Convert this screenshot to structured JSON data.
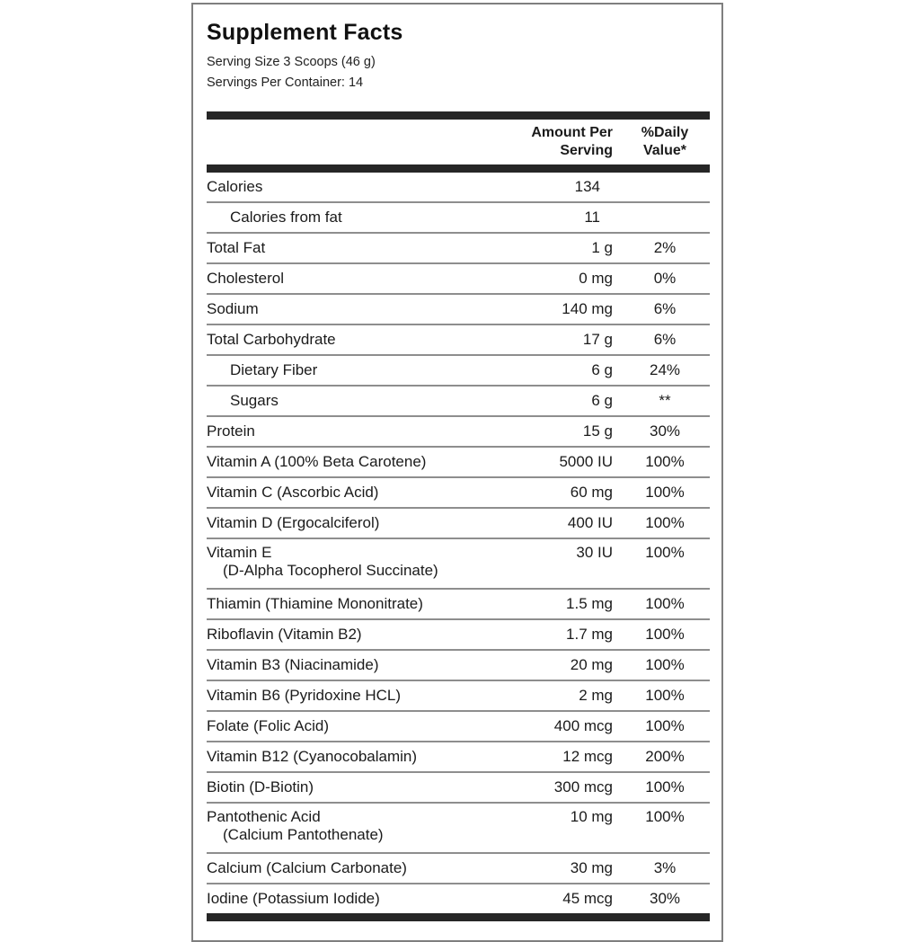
{
  "label": {
    "title": "Supplement Facts",
    "serving_size": "Serving Size 3 Scoops (46 g)",
    "servings_per_container": "Servings Per Container: 14",
    "header": {
      "amount_line1": "Amount Per",
      "amount_line2": "Serving",
      "dv_line1": "%Daily",
      "dv_line2": "Value*"
    },
    "rows": [
      {
        "name": "Calories",
        "amount": "134",
        "dv": "",
        "indent": 0
      },
      {
        "name": "Calories from fat",
        "amount": "11",
        "dv": "",
        "indent": 1
      },
      {
        "name": "Total Fat",
        "amount": "1 g",
        "dv": "2%",
        "indent": 0
      },
      {
        "name": "Cholesterol",
        "amount": "0 mg",
        "dv": "0%",
        "indent": 0
      },
      {
        "name": "Sodium",
        "amount": "140 mg",
        "dv": "6%",
        "indent": 0
      },
      {
        "name": "Total Carbohydrate",
        "amount": "17 g",
        "dv": "6%",
        "indent": 0
      },
      {
        "name": "Dietary Fiber",
        "amount": "6 g",
        "dv": "24%",
        "indent": 1
      },
      {
        "name": "Sugars",
        "amount": "6 g",
        "dv": "**",
        "indent": 1
      },
      {
        "name": "Protein",
        "amount": "15 g",
        "dv": "30%",
        "indent": 0
      },
      {
        "name": "Vitamin A (100% Beta Carotene)",
        "amount": "5000 IU",
        "dv": "100%",
        "indent": 0
      },
      {
        "name": "Vitamin C (Ascorbic Acid)",
        "amount": "60 mg",
        "dv": "100%",
        "indent": 0
      },
      {
        "name": "Vitamin D (Ergocalciferol)",
        "amount": "400 IU",
        "dv": "100%",
        "indent": 0
      },
      {
        "name": "Vitamin E",
        "name2": "(D-Alpha Tocopherol Succinate)",
        "amount": "30 IU",
        "dv": "100%",
        "indent": 0
      },
      {
        "name": "Thiamin (Thiamine Mononitrate)",
        "amount": "1.5 mg",
        "dv": "100%",
        "indent": 0
      },
      {
        "name": "Riboflavin (Vitamin B2)",
        "amount": "1.7 mg",
        "dv": "100%",
        "indent": 0
      },
      {
        "name": "Vitamin B3 (Niacinamide)",
        "amount": "20 mg",
        "dv": "100%",
        "indent": 0
      },
      {
        "name": "Vitamin B6 (Pyridoxine HCL)",
        "amount": "2 mg",
        "dv": "100%",
        "indent": 0
      },
      {
        "name": "Folate (Folic Acid)",
        "amount": "400 mcg",
        "dv": "100%",
        "indent": 0
      },
      {
        "name": "Vitamin B12 (Cyanocobalamin)",
        "amount": "12 mcg",
        "dv": "200%",
        "indent": 0
      },
      {
        "name": "Biotin (D-Biotin)",
        "amount": "300 mcg",
        "dv": "100%",
        "indent": 0
      },
      {
        "name": "Pantothenic Acid",
        "name2": "(Calcium Pantothenate)",
        "amount": "10 mg",
        "dv": "100%",
        "indent": 0
      },
      {
        "name": "Calcium (Calcium Carbonate)",
        "amount": "30 mg",
        "dv": "3%",
        "indent": 0
      },
      {
        "name": "Iodine (Potassium Iodide)",
        "amount": "45 mcg",
        "dv": "30%",
        "indent": 0
      }
    ],
    "colors": {
      "panel_border": "#7f7f7f",
      "thick_bar": "#262626",
      "row_divider": "#8e8e8e",
      "text": "#1b1b1b",
      "background": "#ffffff"
    }
  }
}
